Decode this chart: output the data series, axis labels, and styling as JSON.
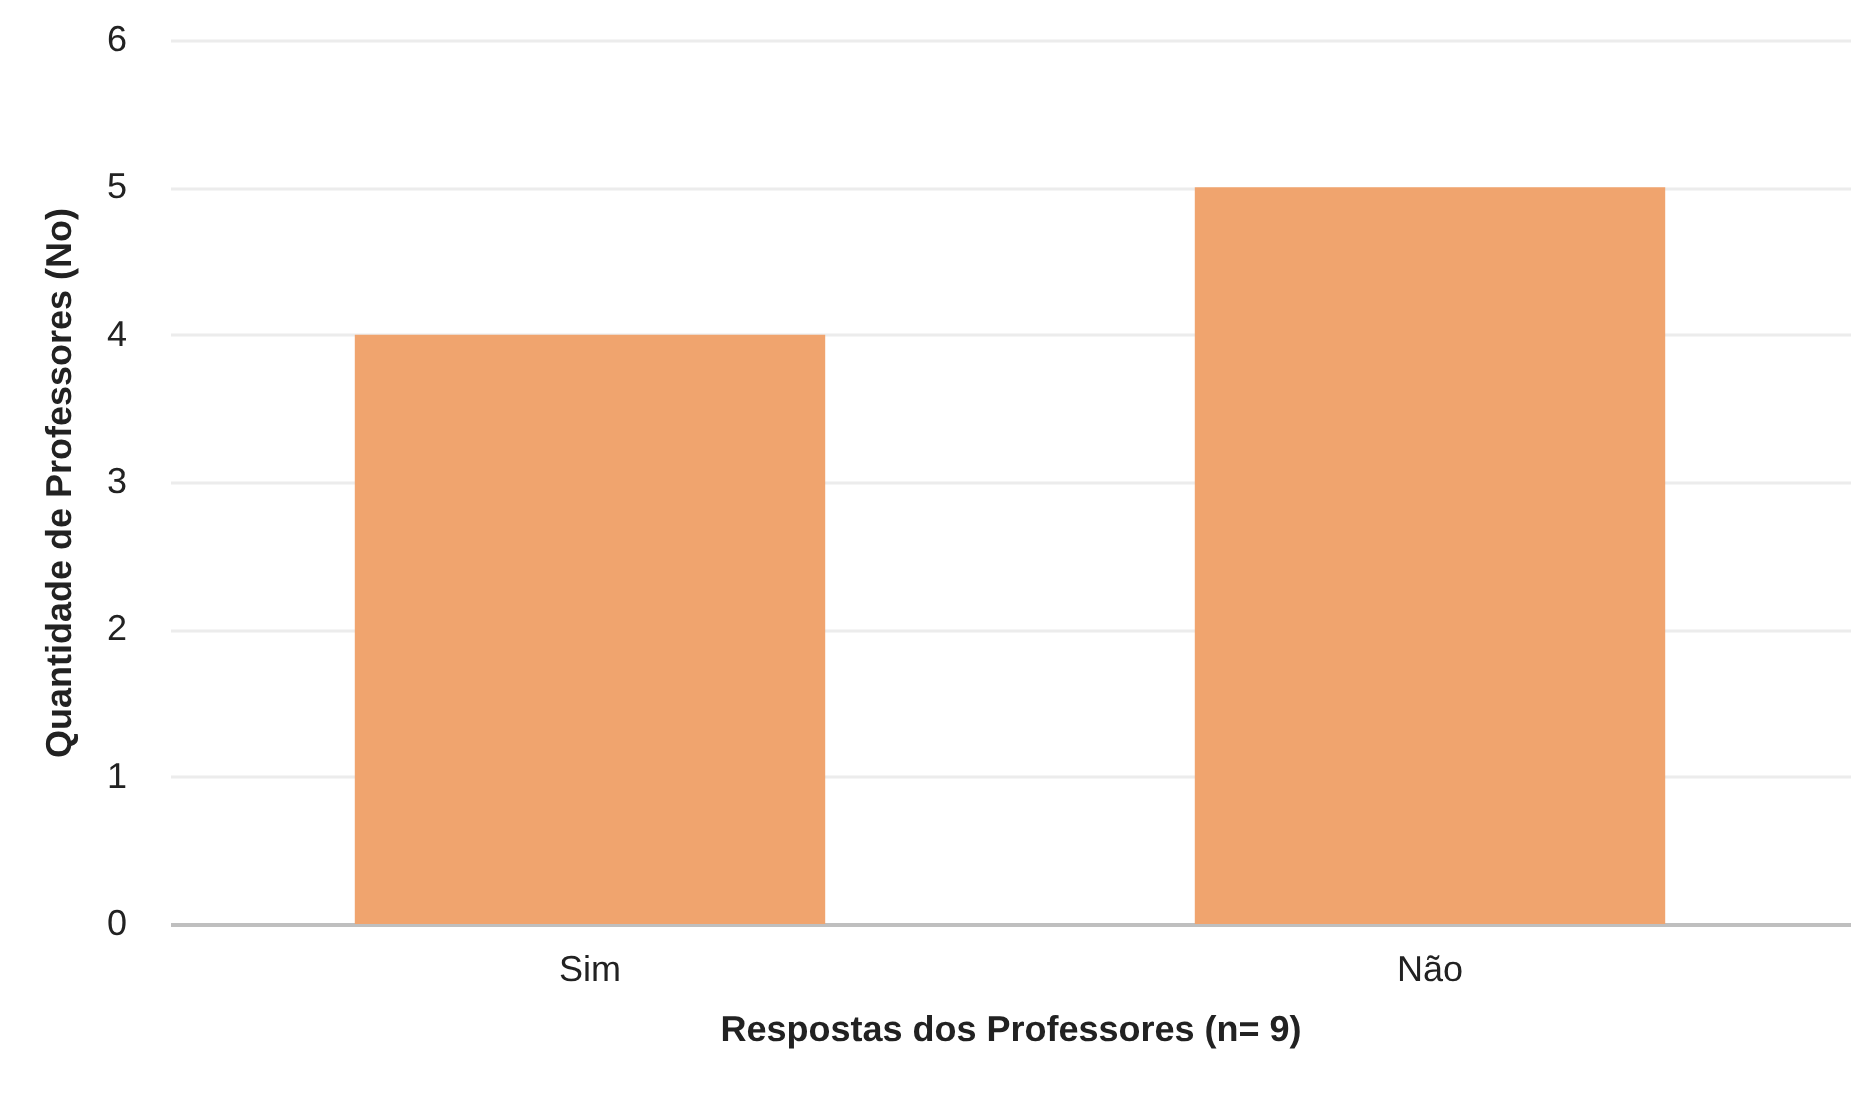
{
  "chart_data": {
    "type": "bar",
    "xlabel": "Respostas dos Professores (n= 9)",
    "ylabel": "Quantidade de Professores (No)",
    "categories": [
      "Sim",
      "Não"
    ],
    "values": [
      4,
      5
    ],
    "color": "#f0a46e",
    "ylim": [
      0,
      6
    ],
    "yticks": [
      0,
      1,
      2,
      3,
      4,
      5,
      6
    ],
    "grid": "y"
  }
}
